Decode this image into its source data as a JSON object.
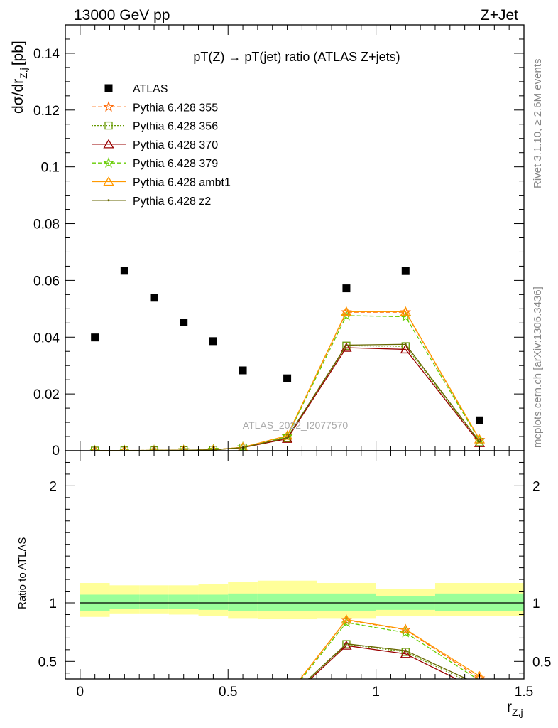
{
  "header": {
    "left_label": "13000 GeV pp",
    "right_label": "Z+Jet"
  },
  "side_text": {
    "rivet": "Rivet 3.1.10, ≥ 2.6M events",
    "mcplots": "mcplots.cern.ch [arXiv:1306.3436]"
  },
  "watermark": "ATLAS_2022_I2077570",
  "chart_data": {
    "type": "scatter",
    "title": "pT(Z) → pT(jet) ratio (ATLAS Z+jets)",
    "xlabel": "r",
    "xlabel_sub": "Z,j",
    "ylabel_main": "dσ/dr",
    "ylabel_main_sub": "Z,j",
    "ylabel_main_unit": "[pb]",
    "ylabel_ratio": "Ratio to ATLAS",
    "xlim": [
      -0.05,
      1.5
    ],
    "ylim_main": [
      0,
      0.15
    ],
    "ylim_ratio": [
      0.35,
      2.3
    ],
    "x_ticks": [
      0,
      0.5,
      1,
      1.5
    ],
    "x_tick_labels": [
      "0",
      "0.5",
      "1",
      "1.5"
    ],
    "y_ticks_main": [
      0.02,
      0.04,
      0.06,
      0.08,
      0.1,
      0.12,
      0.14
    ],
    "y_tick_labels_main": [
      "0.02",
      "0.04",
      "0.06",
      "0.08",
      "0.1",
      "0.12",
      "0.14"
    ],
    "y_zero_label": "0",
    "y_ticks_ratio": [
      0.5,
      1,
      2
    ],
    "y_tick_labels_ratio": [
      "0.5",
      "1",
      "2"
    ],
    "x": [
      0.05,
      0.15,
      0.25,
      0.35,
      0.45,
      0.55,
      0.7,
      0.9,
      1.1,
      1.35
    ],
    "bin_edges": [
      0,
      0.1,
      0.2,
      0.3,
      0.4,
      0.5,
      0.6,
      0.8,
      1.0,
      1.2,
      1.5
    ],
    "legend_position": "top-left",
    "data": {
      "name": "ATLAS",
      "color": "#000000",
      "values": [
        0.0399,
        0.0634,
        0.0539,
        0.0452,
        0.0386,
        0.0283,
        0.0255,
        0.0572,
        0.0633,
        0.0107
      ]
    },
    "uncertainty_band": {
      "inner_color": "#99ff99",
      "outer_color": "#ffff99",
      "inner_low": [
        0.93,
        0.95,
        0.95,
        0.95,
        0.94,
        0.93,
        0.93,
        0.93,
        0.94,
        0.93
      ],
      "inner_high": [
        1.07,
        1.07,
        1.07,
        1.07,
        1.07,
        1.08,
        1.08,
        1.08,
        1.06,
        1.08
      ],
      "outer_low": [
        0.88,
        0.91,
        0.91,
        0.9,
        0.89,
        0.87,
        0.86,
        0.87,
        0.89,
        0.89
      ],
      "outer_high": [
        1.17,
        1.15,
        1.15,
        1.15,
        1.16,
        1.18,
        1.19,
        1.17,
        1.12,
        1.17
      ]
    },
    "series": [
      {
        "name": "Pythia 6.428 355",
        "color": "#ff6600",
        "dash": "6,3",
        "marker": "star",
        "values": [
          2e-05,
          8e-05,
          0.00012,
          0.00018,
          0.0003,
          0.0012,
          0.0052,
          0.0488,
          0.0488,
          0.0038
        ]
      },
      {
        "name": "Pythia 6.428 356",
        "color": "#669900",
        "dash": "2,2",
        "marker": "square-open",
        "values": [
          2e-05,
          7e-05,
          0.00011,
          0.00016,
          0.0003,
          0.0011,
          0.0044,
          0.037,
          0.0368,
          0.003
        ]
      },
      {
        "name": "Pythia 6.428 370",
        "color": "#990000",
        "dash": "",
        "marker": "triangle-open",
        "values": [
          2e-05,
          7e-05,
          0.0001,
          0.00015,
          0.0003,
          0.0011,
          0.0042,
          0.0363,
          0.0357,
          0.0027
        ]
      },
      {
        "name": "Pythia 6.428 379",
        "color": "#66cc00",
        "dash": "6,3",
        "marker": "star",
        "values": [
          2e-05,
          8e-05,
          0.00012,
          0.00017,
          0.0003,
          0.0012,
          0.005,
          0.0476,
          0.0472,
          0.0036
        ]
      },
      {
        "name": "Pythia 6.428 ambt1",
        "color": "#ff9900",
        "dash": "",
        "marker": "triangle-open",
        "values": [
          2e-05,
          8e-05,
          0.00012,
          0.00018,
          0.0003,
          0.0012,
          0.0053,
          0.049,
          0.049,
          0.004
        ]
      },
      {
        "name": "Pythia 6.428 z2",
        "color": "#666600",
        "dash": "",
        "marker": "dot",
        "values": [
          2e-05,
          7e-05,
          0.00011,
          0.00016,
          0.0003,
          0.0011,
          0.0046,
          0.0372,
          0.0375,
          0.0032
        ]
      }
    ]
  }
}
